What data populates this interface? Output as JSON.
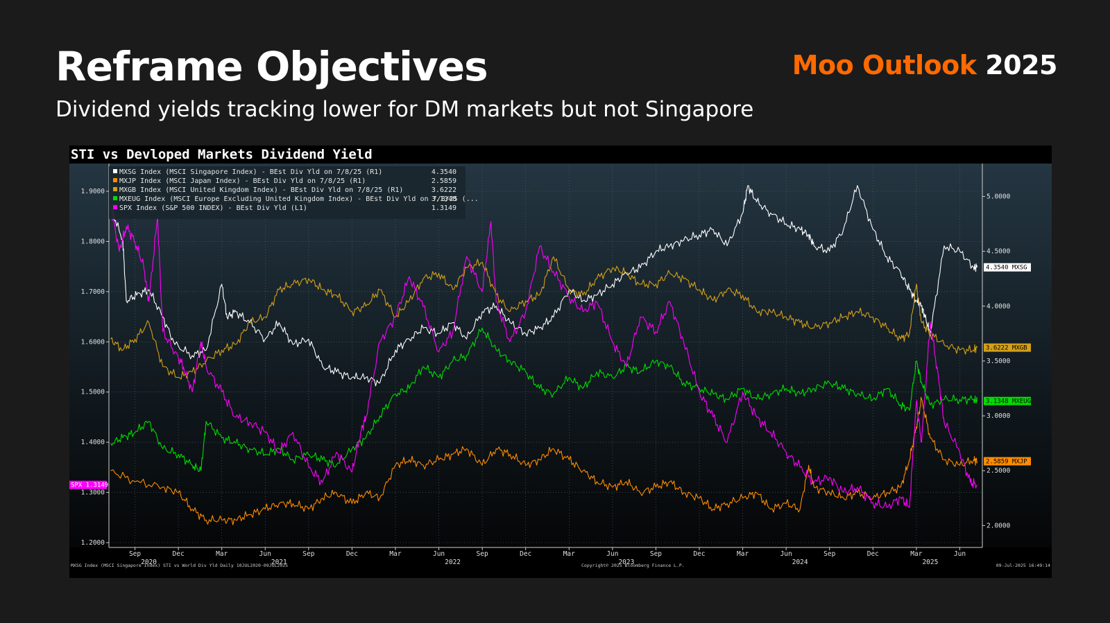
{
  "slide": {
    "title": "Reframe Objectives",
    "subtitle": "Dividend yields tracking lower for DM markets but not Singapore",
    "brand_name": "Moo Outlook",
    "brand_year": "2025"
  },
  "chart_data": {
    "type": "line",
    "title": "STI vs Devloped Markets Dividend Yield",
    "left_axis": {
      "ticks": [
        "1.2000",
        "1.3000",
        "1.4000",
        "1.5000",
        "1.6000",
        "1.7000",
        "1.8000",
        "1.9000"
      ],
      "ylim": [
        1.2,
        1.9
      ]
    },
    "right_axis": {
      "ticks": [
        "2.0000",
        "2.5000",
        "3.0000",
        "3.5000",
        "4.0000",
        "4.5000",
        "5.0000"
      ],
      "ylim": [
        1.8,
        5.3
      ]
    },
    "x_tick_labels": [
      "Sep",
      "Dec",
      "Mar",
      "Jun",
      "Sep",
      "Dec",
      "Mar",
      "Jun",
      "Sep",
      "Dec",
      "Mar",
      "Jun",
      "Sep",
      "Dec",
      "Mar",
      "Jun",
      "Sep",
      "Dec",
      "Mar",
      "Jun"
    ],
    "x_tick_dates": [
      2020.67,
      2020.92,
      2021.17,
      2021.42,
      2021.67,
      2021.92,
      2022.17,
      2022.42,
      2022.67,
      2022.92,
      2023.17,
      2023.42,
      2023.67,
      2023.92,
      2024.17,
      2024.42,
      2024.67,
      2024.92,
      2025.17,
      2025.42
    ],
    "x_year_labels": [
      {
        "label": "2020",
        "x": 2020.75
      },
      {
        "label": "2021",
        "x": 2021.5
      },
      {
        "label": "2022",
        "x": 2022.5
      },
      {
        "label": "2023",
        "x": 2023.5
      },
      {
        "label": "2024",
        "x": 2024.5
      },
      {
        "label": "2025",
        "x": 2025.25
      }
    ],
    "xlim": [
      2020.52,
      2025.55
    ],
    "series": [
      {
        "name": "MXSG Index (MSCI Singapore Index) - BEst Div Yld on 7/8/25 (R1)",
        "last": "4.3540",
        "tag": "4.3540 MXSG",
        "axis": "right",
        "color": "#ffffff",
        "x": [
          2020.53,
          2020.6,
          2020.62,
          2020.68,
          2020.75,
          2020.83,
          2020.9,
          2021.0,
          2021.08,
          2021.17,
          2021.2,
          2021.25,
          2021.33,
          2021.42,
          2021.5,
          2021.58,
          2021.67,
          2021.75,
          2021.83,
          2021.92,
          2022.0,
          2022.08,
          2022.17,
          2022.25,
          2022.33,
          2022.42,
          2022.5,
          2022.58,
          2022.67,
          2022.75,
          2022.83,
          2022.92,
          2023.0,
          2023.08,
          2023.17,
          2023.25,
          2023.33,
          2023.42,
          2023.5,
          2023.58,
          2023.67,
          2023.75,
          2023.83,
          2023.92,
          2024.0,
          2024.08,
          2024.17,
          2024.2,
          2024.25,
          2024.33,
          2024.42,
          2024.5,
          2024.55,
          2024.58,
          2024.67,
          2024.75,
          2024.83,
          2024.92,
          2025.0,
          2025.08,
          2025.13,
          2025.17,
          2025.2,
          2025.22,
          2025.25,
          2025.33,
          2025.42,
          2025.5,
          2025.52
        ],
        "y": [
          4.9,
          4.6,
          4.05,
          4.1,
          4.15,
          3.9,
          3.65,
          3.55,
          3.6,
          4.2,
          3.9,
          3.95,
          3.85,
          3.7,
          3.85,
          3.65,
          3.7,
          3.45,
          3.4,
          3.35,
          3.35,
          3.3,
          3.6,
          3.7,
          3.8,
          3.75,
          3.85,
          3.7,
          3.95,
          4.0,
          3.85,
          3.75,
          3.8,
          3.9,
          4.15,
          4.05,
          4.1,
          4.2,
          4.3,
          4.35,
          4.5,
          4.55,
          4.6,
          4.65,
          4.7,
          4.55,
          4.85,
          5.1,
          4.95,
          4.85,
          4.75,
          4.7,
          4.65,
          4.55,
          4.5,
          4.7,
          5.1,
          4.7,
          4.45,
          4.3,
          4.15,
          4.05,
          4.0,
          3.9,
          3.75,
          4.55,
          4.5,
          4.35,
          4.354
        ]
      },
      {
        "name": "MXJP Index (MSCI Japan Index) - BEst Div Yld on 7/8/25 (R1)",
        "last": "2.5859",
        "tag": "2.5859 MXJP",
        "axis": "right",
        "color": "#ff8c00",
        "x": [
          2020.53,
          2020.67,
          2020.83,
          2020.92,
          2021.0,
          2021.08,
          2021.17,
          2021.25,
          2021.33,
          2021.42,
          2021.5,
          2021.58,
          2021.67,
          2021.75,
          2021.83,
          2021.92,
          2022.0,
          2022.08,
          2022.17,
          2022.25,
          2022.33,
          2022.42,
          2022.5,
          2022.58,
          2022.67,
          2022.75,
          2022.83,
          2022.92,
          2023.0,
          2023.08,
          2023.17,
          2023.25,
          2023.33,
          2023.42,
          2023.5,
          2023.58,
          2023.67,
          2023.75,
          2023.83,
          2023.92,
          2024.0,
          2024.08,
          2024.17,
          2024.25,
          2024.33,
          2024.42,
          2024.5,
          2024.55,
          2024.58,
          2024.67,
          2024.75,
          2024.83,
          2024.92,
          2025.0,
          2025.08,
          2025.13,
          2025.17,
          2025.2,
          2025.25,
          2025.33,
          2025.42,
          2025.5,
          2025.52
        ],
        "y": [
          2.5,
          2.4,
          2.35,
          2.3,
          2.15,
          2.05,
          2.05,
          2.05,
          2.1,
          2.15,
          2.2,
          2.2,
          2.15,
          2.25,
          2.3,
          2.2,
          2.3,
          2.25,
          2.55,
          2.6,
          2.55,
          2.6,
          2.65,
          2.7,
          2.55,
          2.7,
          2.65,
          2.55,
          2.6,
          2.7,
          2.6,
          2.5,
          2.4,
          2.35,
          2.4,
          2.3,
          2.35,
          2.4,
          2.3,
          2.25,
          2.15,
          2.2,
          2.25,
          2.3,
          2.15,
          2.2,
          2.15,
          2.55,
          2.35,
          2.3,
          2.25,
          2.3,
          2.25,
          2.3,
          2.35,
          2.6,
          2.9,
          3.15,
          2.8,
          2.6,
          2.55,
          2.6,
          2.586
        ]
      },
      {
        "name": "MXGB Index (MSCI United Kingdom Index) - BEst Div Yld on 7/8/25 (R1)",
        "last": "3.6222",
        "tag": "3.6222 MXGB",
        "axis": "right",
        "color": "#d4a017",
        "x": [
          2020.53,
          2020.6,
          2020.67,
          2020.75,
          2020.83,
          2020.92,
          2021.0,
          2021.08,
          2021.17,
          2021.25,
          2021.33,
          2021.42,
          2021.5,
          2021.58,
          2021.67,
          2021.75,
          2021.83,
          2021.92,
          2022.0,
          2022.08,
          2022.17,
          2022.25,
          2022.33,
          2022.42,
          2022.5,
          2022.58,
          2022.67,
          2022.75,
          2022.83,
          2022.92,
          2023.0,
          2023.08,
          2023.17,
          2023.25,
          2023.33,
          2023.42,
          2023.5,
          2023.58,
          2023.67,
          2023.75,
          2023.83,
          2023.92,
          2024.0,
          2024.08,
          2024.17,
          2024.25,
          2024.33,
          2024.42,
          2024.5,
          2024.58,
          2024.67,
          2024.75,
          2024.83,
          2024.92,
          2025.0,
          2025.08,
          2025.13,
          2025.17,
          2025.2,
          2025.25,
          2025.33,
          2025.42,
          2025.5,
          2025.52
        ],
        "y": [
          3.7,
          3.6,
          3.7,
          3.85,
          3.45,
          3.35,
          3.4,
          3.5,
          3.6,
          3.65,
          3.85,
          3.9,
          4.15,
          4.2,
          4.25,
          4.15,
          4.1,
          3.95,
          4.0,
          4.15,
          3.9,
          4.05,
          4.25,
          4.3,
          4.15,
          4.35,
          4.4,
          4.1,
          3.95,
          4.05,
          4.1,
          4.45,
          4.15,
          4.1,
          4.25,
          4.35,
          4.3,
          4.2,
          4.2,
          4.3,
          4.25,
          4.15,
          4.05,
          4.15,
          4.1,
          3.95,
          3.95,
          3.9,
          3.85,
          3.8,
          3.85,
          3.9,
          3.95,
          3.9,
          3.8,
          3.7,
          3.75,
          4.2,
          3.85,
          3.75,
          3.65,
          3.6,
          3.6,
          3.622
        ]
      },
      {
        "name": "MXEUG Index (MSCI Europe Excluding United Kingdom Index) - BEst Div Yld on 7/8/25 (...",
        "last": "3.1348",
        "tag": "3.1348 MXEUG",
        "axis": "right",
        "color": "#00dd00",
        "x": [
          2020.53,
          2020.6,
          2020.67,
          2020.75,
          2020.83,
          2020.92,
          2021.0,
          2021.05,
          2021.08,
          2021.17,
          2021.25,
          2021.33,
          2021.42,
          2021.5,
          2021.58,
          2021.67,
          2021.75,
          2021.83,
          2021.92,
          2022.0,
          2022.08,
          2022.17,
          2022.25,
          2022.33,
          2022.42,
          2022.5,
          2022.58,
          2022.67,
          2022.75,
          2022.83,
          2022.92,
          2023.0,
          2023.08,
          2023.17,
          2023.25,
          2023.33,
          2023.42,
          2023.5,
          2023.58,
          2023.67,
          2023.75,
          2023.83,
          2023.92,
          2024.0,
          2024.08,
          2024.17,
          2024.25,
          2024.33,
          2024.42,
          2024.5,
          2024.58,
          2024.67,
          2024.75,
          2024.83,
          2024.92,
          2025.0,
          2025.08,
          2025.13,
          2025.17,
          2025.2,
          2025.25,
          2025.33,
          2025.42,
          2025.5,
          2025.52
        ],
        "y": [
          2.75,
          2.8,
          2.85,
          2.95,
          2.7,
          2.65,
          2.55,
          2.5,
          2.95,
          2.8,
          2.75,
          2.7,
          2.65,
          2.7,
          2.6,
          2.65,
          2.6,
          2.55,
          2.7,
          2.8,
          3.0,
          3.2,
          3.25,
          3.45,
          3.35,
          3.5,
          3.55,
          3.8,
          3.6,
          3.5,
          3.4,
          3.25,
          3.2,
          3.35,
          3.25,
          3.4,
          3.35,
          3.45,
          3.4,
          3.5,
          3.45,
          3.3,
          3.25,
          3.2,
          3.15,
          3.25,
          3.15,
          3.2,
          3.25,
          3.2,
          3.25,
          3.3,
          3.25,
          3.2,
          3.15,
          3.25,
          3.1,
          3.05,
          3.5,
          3.3,
          3.1,
          3.15,
          3.15,
          3.15,
          3.135
        ]
      },
      {
        "name": "SPX Index (S&P 500 INDEX) - BEst Div Yld (L1)",
        "last": "1.3149",
        "tag": "SPX 1.3149",
        "axis": "left",
        "color": "#ff00ff",
        "x": [
          2020.53,
          2020.58,
          2020.62,
          2020.67,
          2020.72,
          2020.75,
          2020.8,
          2020.83,
          2020.9,
          2020.95,
          2021.0,
          2021.05,
          2021.08,
          2021.17,
          2021.25,
          2021.33,
          2021.42,
          2021.5,
          2021.58,
          2021.67,
          2021.75,
          2021.83,
          2021.92,
          2021.97,
          2022.0,
          2022.08,
          2022.17,
          2022.25,
          2022.33,
          2022.42,
          2022.5,
          2022.58,
          2022.67,
          2022.72,
          2022.75,
          2022.83,
          2022.92,
          2023.0,
          2023.08,
          2023.17,
          2023.25,
          2023.33,
          2023.42,
          2023.5,
          2023.58,
          2023.67,
          2023.75,
          2023.83,
          2023.92,
          2024.0,
          2024.08,
          2024.17,
          2024.25,
          2024.33,
          2024.42,
          2024.5,
          2024.58,
          2024.67,
          2024.75,
          2024.83,
          2024.92,
          2025.0,
          2025.08,
          2025.13,
          2025.17,
          2025.2,
          2025.25,
          2025.3,
          2025.33,
          2025.42,
          2025.48,
          2025.52
        ],
        "y": [
          1.87,
          1.78,
          1.83,
          1.8,
          1.75,
          1.68,
          1.85,
          1.62,
          1.58,
          1.55,
          1.5,
          1.6,
          1.55,
          1.5,
          1.45,
          1.44,
          1.42,
          1.38,
          1.42,
          1.35,
          1.32,
          1.38,
          1.34,
          1.42,
          1.45,
          1.6,
          1.65,
          1.73,
          1.67,
          1.58,
          1.62,
          1.77,
          1.7,
          1.84,
          1.68,
          1.6,
          1.66,
          1.79,
          1.74,
          1.69,
          1.66,
          1.68,
          1.6,
          1.55,
          1.65,
          1.62,
          1.68,
          1.6,
          1.5,
          1.45,
          1.4,
          1.5,
          1.45,
          1.42,
          1.38,
          1.35,
          1.32,
          1.33,
          1.3,
          1.31,
          1.28,
          1.27,
          1.29,
          1.27,
          1.48,
          1.4,
          1.64,
          1.52,
          1.44,
          1.38,
          1.32,
          1.315
        ]
      }
    ],
    "footer_left": "MXSG Index (MSCI Singapore Index) STI vs World Div Yld  Daily 10JUL2020-09JUL2025",
    "footer_center": "Copyright© 2025 Bloomberg Finance L.P.",
    "footer_right": "09-Jul-2025 16:49:14"
  }
}
